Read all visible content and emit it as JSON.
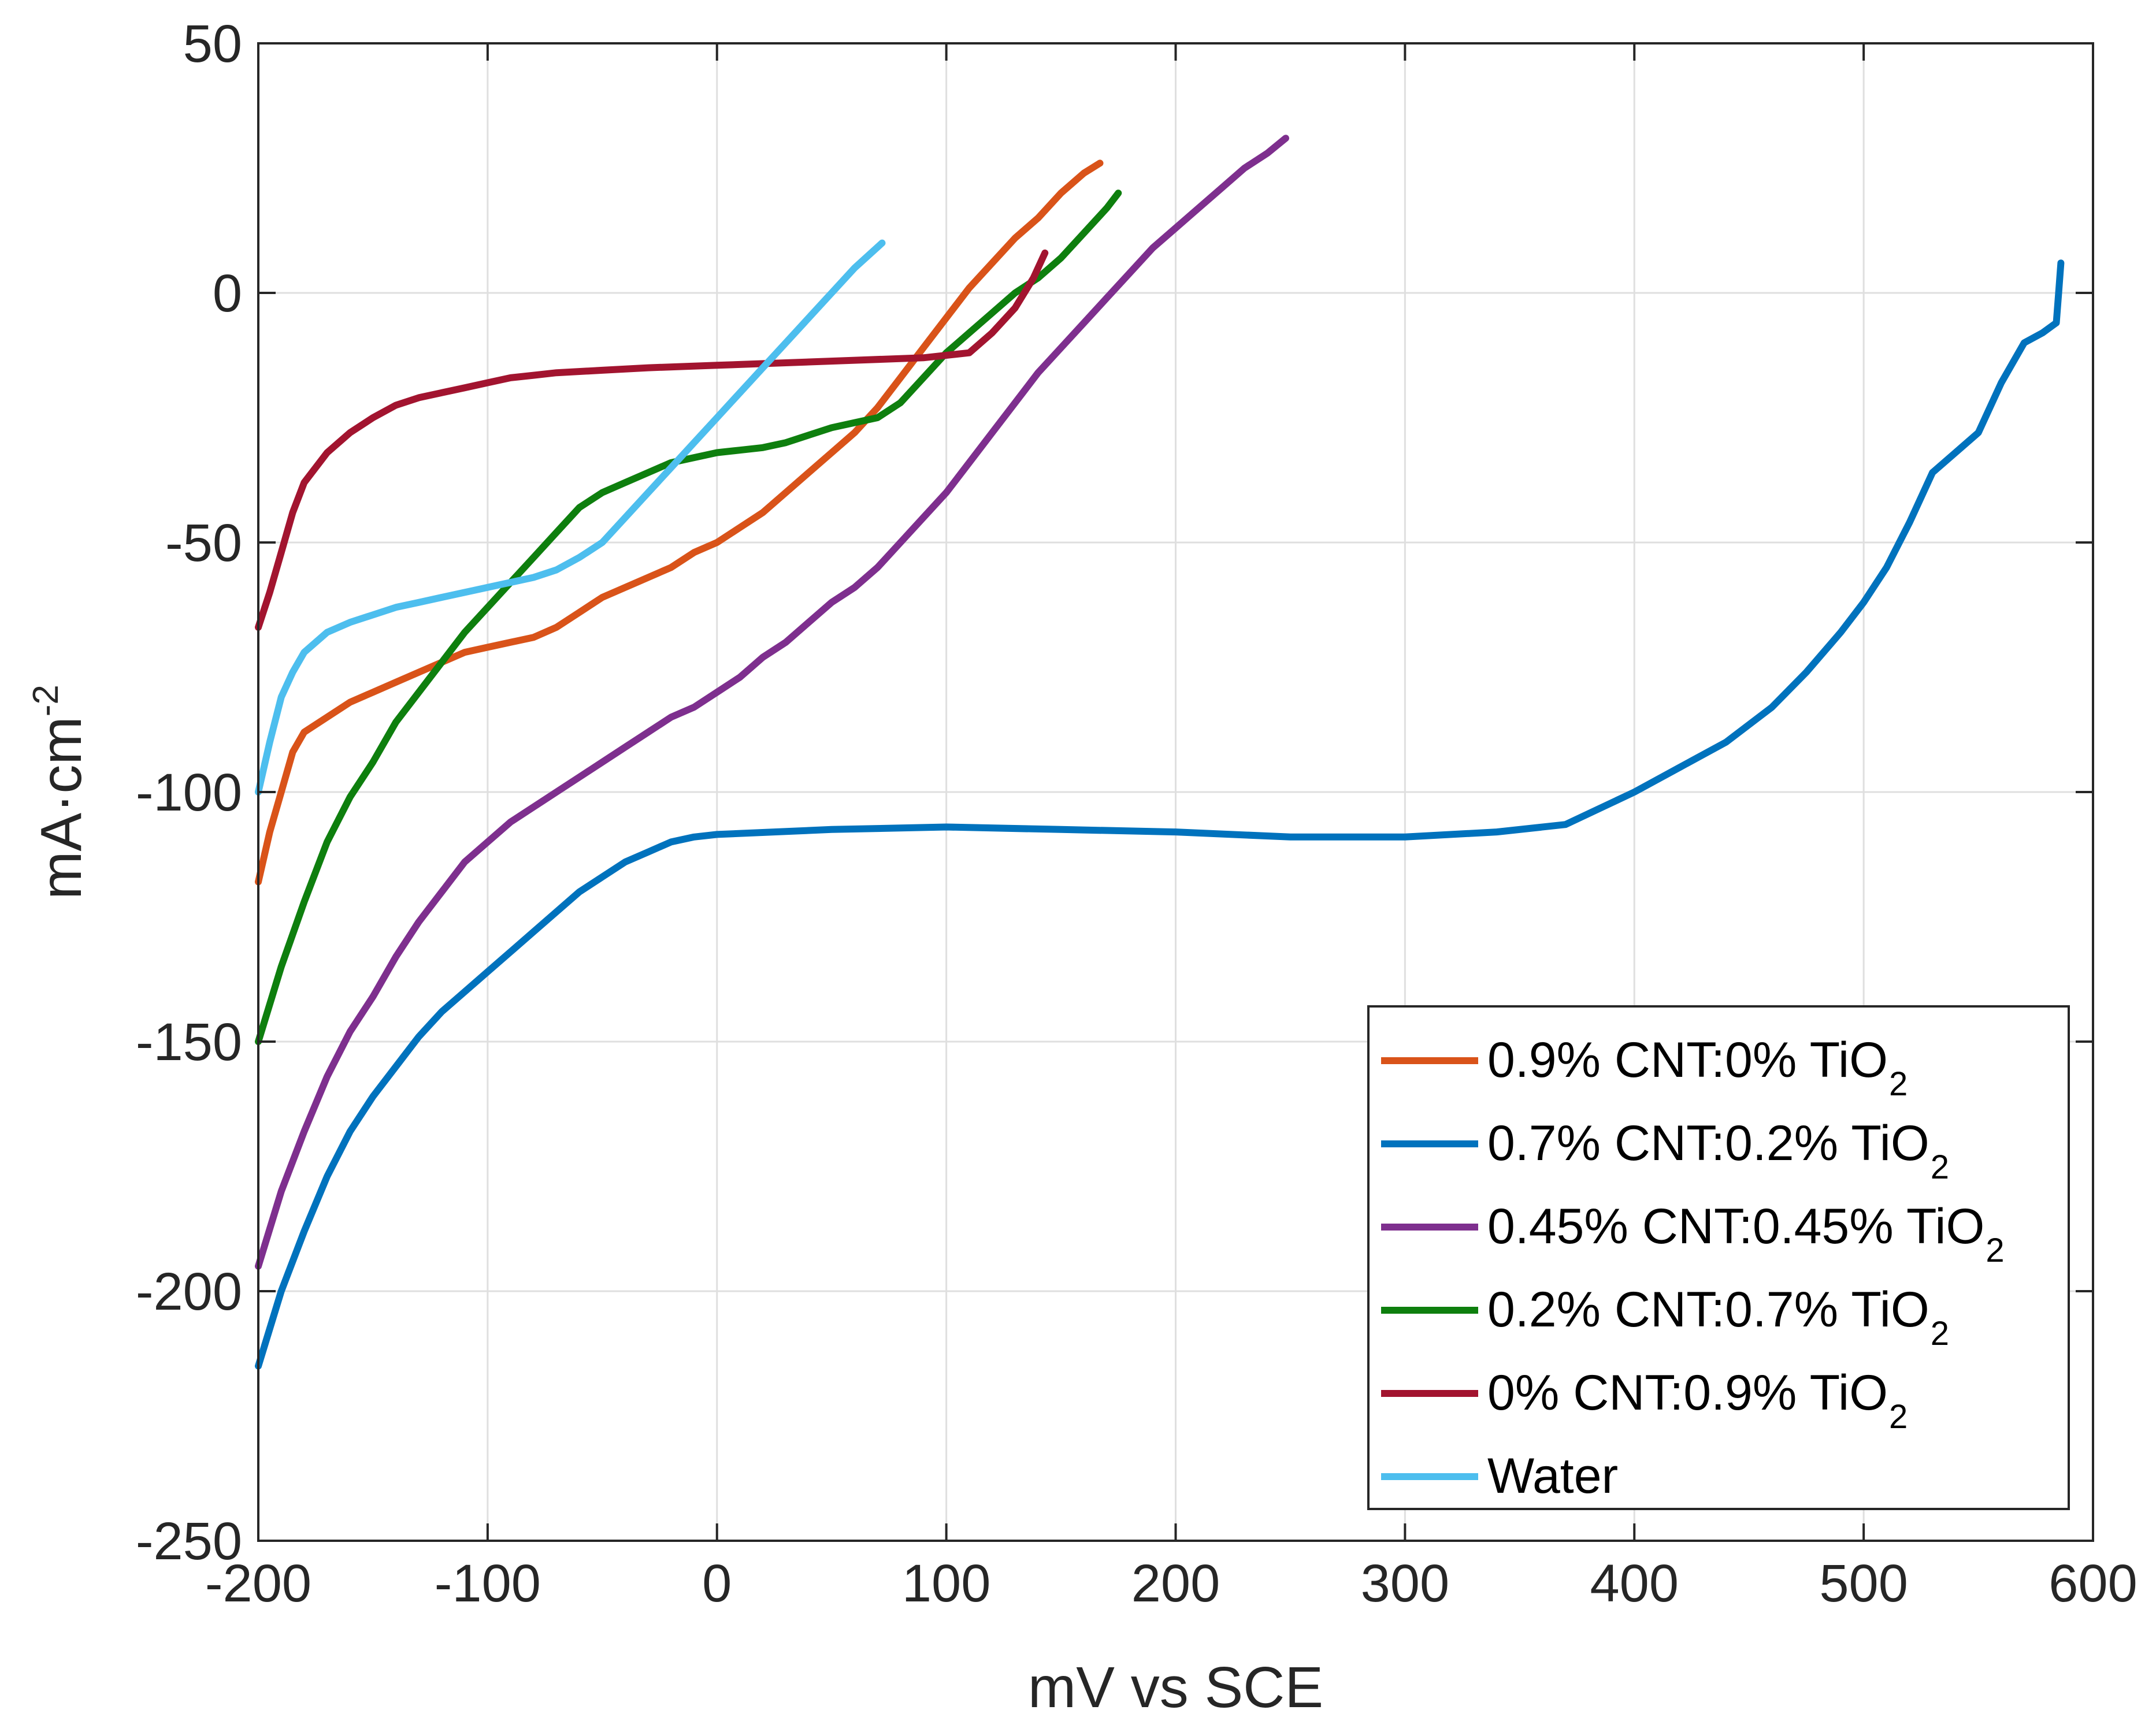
{
  "chart_data": {
    "type": "line",
    "title": "",
    "xlabel": "mV vs SCE",
    "ylabel": {
      "main": "mA·cm",
      "sup": "-2"
    },
    "xlim": [
      -200,
      600
    ],
    "ylim": [
      -250,
      50
    ],
    "xticks": [
      -200,
      -100,
      0,
      100,
      200,
      300,
      400,
      500,
      600
    ],
    "yticks": [
      50,
      0,
      -50,
      -100,
      -150,
      -200,
      -250
    ],
    "grid": true,
    "legend_position": "bottom-right",
    "series": [
      {
        "name": "0.9% CNT:0% TiO",
        "sub": "2",
        "color": "#D95319",
        "points": [
          [
            -200,
            -118
          ],
          [
            -195,
            -108
          ],
          [
            -190,
            -100
          ],
          [
            -185,
            -92
          ],
          [
            -180,
            -88
          ],
          [
            -170,
            -85
          ],
          [
            -160,
            -82
          ],
          [
            -150,
            -80
          ],
          [
            -140,
            -78
          ],
          [
            -130,
            -76
          ],
          [
            -120,
            -74
          ],
          [
            -110,
            -72
          ],
          [
            -100,
            -71
          ],
          [
            -90,
            -70
          ],
          [
            -80,
            -69
          ],
          [
            -70,
            -67
          ],
          [
            -60,
            -64
          ],
          [
            -50,
            -61
          ],
          [
            -40,
            -59
          ],
          [
            -30,
            -57
          ],
          [
            -20,
            -55
          ],
          [
            -10,
            -52
          ],
          [
            0,
            -50
          ],
          [
            10,
            -47
          ],
          [
            20,
            -44
          ],
          [
            30,
            -40
          ],
          [
            40,
            -36
          ],
          [
            50,
            -32
          ],
          [
            60,
            -28
          ],
          [
            70,
            -23
          ],
          [
            80,
            -17
          ],
          [
            90,
            -11
          ],
          [
            100,
            -5
          ],
          [
            110,
            1
          ],
          [
            120,
            6
          ],
          [
            130,
            11
          ],
          [
            140,
            15
          ],
          [
            150,
            20
          ],
          [
            160,
            24
          ],
          [
            167,
            26
          ]
        ]
      },
      {
        "name": "0.7% CNT:0.2% TiO",
        "sub": "2",
        "color": "#0072BD",
        "points": [
          [
            -200,
            -215
          ],
          [
            -190,
            -200
          ],
          [
            -180,
            -188
          ],
          [
            -170,
            -177
          ],
          [
            -160,
            -168
          ],
          [
            -150,
            -161
          ],
          [
            -140,
            -155
          ],
          [
            -130,
            -149
          ],
          [
            -120,
            -144
          ],
          [
            -110,
            -140
          ],
          [
            -100,
            -136
          ],
          [
            -90,
            -132
          ],
          [
            -80,
            -128
          ],
          [
            -70,
            -124
          ],
          [
            -60,
            -120
          ],
          [
            -50,
            -117
          ],
          [
            -40,
            -114
          ],
          [
            -30,
            -112
          ],
          [
            -20,
            -110
          ],
          [
            -10,
            -109
          ],
          [
            0,
            -108.5
          ],
          [
            50,
            -107.5
          ],
          [
            100,
            -107
          ],
          [
            150,
            -107.5
          ],
          [
            200,
            -108
          ],
          [
            250,
            -109
          ],
          [
            300,
            -109
          ],
          [
            340,
            -108
          ],
          [
            370,
            -106.5
          ],
          [
            400,
            -100
          ],
          [
            420,
            -95
          ],
          [
            440,
            -90
          ],
          [
            460,
            -83
          ],
          [
            475,
            -76
          ],
          [
            490,
            -68
          ],
          [
            500,
            -62
          ],
          [
            510,
            -55
          ],
          [
            520,
            -46
          ],
          [
            530,
            -36
          ],
          [
            540,
            -32
          ],
          [
            550,
            -28
          ],
          [
            560,
            -18
          ],
          [
            570,
            -10
          ],
          [
            578,
            -8
          ],
          [
            584,
            -6
          ],
          [
            585,
            0
          ],
          [
            586,
            6
          ]
        ]
      },
      {
        "name": "0.45% CNT:0.45% TiO",
        "sub": "2",
        "color": "#7E2F8E",
        "points": [
          [
            -200,
            -195
          ],
          [
            -190,
            -180
          ],
          [
            -180,
            -168
          ],
          [
            -170,
            -157
          ],
          [
            -160,
            -148
          ],
          [
            -150,
            -141
          ],
          [
            -140,
            -133
          ],
          [
            -130,
            -126
          ],
          [
            -120,
            -120
          ],
          [
            -110,
            -114
          ],
          [
            -100,
            -110
          ],
          [
            -90,
            -106
          ],
          [
            -80,
            -103
          ],
          [
            -70,
            -100
          ],
          [
            -60,
            -97
          ],
          [
            -50,
            -94
          ],
          [
            -40,
            -91
          ],
          [
            -30,
            -88
          ],
          [
            -20,
            -85
          ],
          [
            -10,
            -83
          ],
          [
            0,
            -80
          ],
          [
            10,
            -77
          ],
          [
            20,
            -73
          ],
          [
            30,
            -70
          ],
          [
            40,
            -66
          ],
          [
            50,
            -62
          ],
          [
            60,
            -59
          ],
          [
            70,
            -55
          ],
          [
            80,
            -50
          ],
          [
            90,
            -45
          ],
          [
            100,
            -40
          ],
          [
            110,
            -34
          ],
          [
            120,
            -28
          ],
          [
            130,
            -22
          ],
          [
            140,
            -16
          ],
          [
            150,
            -11
          ],
          [
            160,
            -6
          ],
          [
            170,
            -1
          ],
          [
            180,
            4
          ],
          [
            190,
            9
          ],
          [
            200,
            13
          ],
          [
            210,
            17
          ],
          [
            220,
            21
          ],
          [
            230,
            25
          ],
          [
            240,
            28
          ],
          [
            248,
            31
          ]
        ]
      },
      {
        "name": "0.2% CNT:0.7% TiO",
        "sub": "2",
        "color": "#0E7F0E",
        "points": [
          [
            -200,
            -150
          ],
          [
            -190,
            -135
          ],
          [
            -180,
            -122
          ],
          [
            -170,
            -110
          ],
          [
            -160,
            -101
          ],
          [
            -150,
            -94
          ],
          [
            -140,
            -86
          ],
          [
            -130,
            -80
          ],
          [
            -120,
            -74
          ],
          [
            -110,
            -68
          ],
          [
            -100,
            -63
          ],
          [
            -90,
            -58
          ],
          [
            -80,
            -53
          ],
          [
            -70,
            -48
          ],
          [
            -60,
            -43
          ],
          [
            -50,
            -40
          ],
          [
            -40,
            -38
          ],
          [
            -30,
            -36
          ],
          [
            -20,
            -34
          ],
          [
            -10,
            -33
          ],
          [
            0,
            -32
          ],
          [
            10,
            -31.5
          ],
          [
            20,
            -31
          ],
          [
            30,
            -30
          ],
          [
            40,
            -28.5
          ],
          [
            50,
            -27
          ],
          [
            60,
            -26
          ],
          [
            70,
            -25
          ],
          [
            80,
            -22
          ],
          [
            90,
            -17
          ],
          [
            100,
            -12
          ],
          [
            110,
            -8
          ],
          [
            120,
            -4
          ],
          [
            130,
            0
          ],
          [
            140,
            3
          ],
          [
            150,
            7
          ],
          [
            160,
            12
          ],
          [
            170,
            17
          ],
          [
            175,
            20
          ]
        ]
      },
      {
        "name": "0% CNT:0.9% TiO",
        "sub": "2",
        "color": "#A2142F",
        "points": [
          [
            -200,
            -67
          ],
          [
            -195,
            -60
          ],
          [
            -190,
            -52
          ],
          [
            -185,
            -44
          ],
          [
            -180,
            -38
          ],
          [
            -170,
            -32
          ],
          [
            -160,
            -28
          ],
          [
            -150,
            -25
          ],
          [
            -140,
            -22.5
          ],
          [
            -130,
            -21
          ],
          [
            -120,
            -20
          ],
          [
            -110,
            -19
          ],
          [
            -100,
            -18
          ],
          [
            -90,
            -17
          ],
          [
            -80,
            -16.5
          ],
          [
            -70,
            -16
          ],
          [
            -50,
            -15.5
          ],
          [
            -30,
            -15
          ],
          [
            0,
            -14.5
          ],
          [
            30,
            -14
          ],
          [
            60,
            -13.5
          ],
          [
            90,
            -13
          ],
          [
            110,
            -12
          ],
          [
            120,
            -8
          ],
          [
            130,
            -3
          ],
          [
            138,
            3
          ],
          [
            143,
            8
          ]
        ]
      },
      {
        "name": "Water",
        "sub": "",
        "color": "#4DBEEE",
        "points": [
          [
            -200,
            -100
          ],
          [
            -195,
            -90
          ],
          [
            -190,
            -81
          ],
          [
            -185,
            -76
          ],
          [
            -180,
            -72
          ],
          [
            -170,
            -68
          ],
          [
            -160,
            -66
          ],
          [
            -150,
            -64.5
          ],
          [
            -140,
            -63
          ],
          [
            -130,
            -62
          ],
          [
            -120,
            -61
          ],
          [
            -110,
            -60
          ],
          [
            -100,
            -59
          ],
          [
            -90,
            -58
          ],
          [
            -80,
            -57
          ],
          [
            -70,
            -55.5
          ],
          [
            -60,
            -53
          ],
          [
            -50,
            -50
          ],
          [
            -40,
            -45
          ],
          [
            -30,
            -40
          ],
          [
            -20,
            -35
          ],
          [
            -10,
            -30
          ],
          [
            0,
            -25
          ],
          [
            10,
            -20
          ],
          [
            20,
            -15
          ],
          [
            30,
            -10
          ],
          [
            40,
            -5
          ],
          [
            50,
            0
          ],
          [
            60,
            5
          ],
          [
            72,
            10
          ]
        ]
      }
    ]
  }
}
